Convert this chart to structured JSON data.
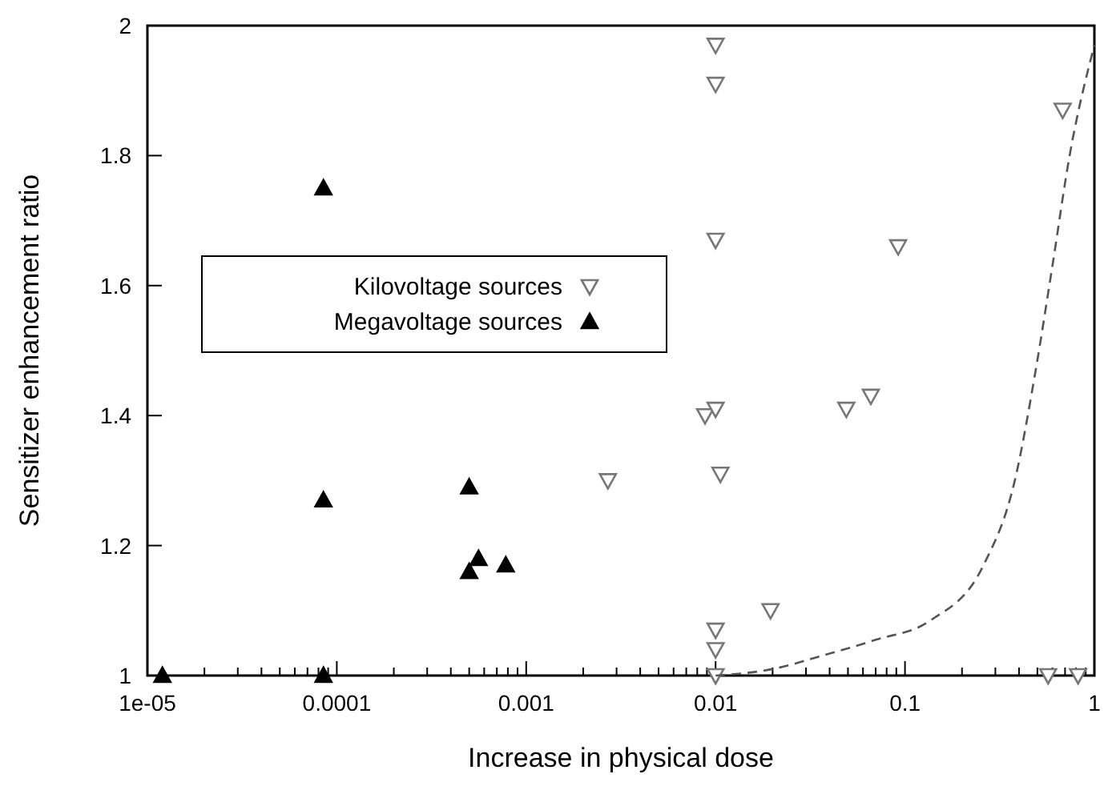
{
  "chart_data": {
    "type": "scatter",
    "xlabel": "Increase in physical dose",
    "ylabel": "Sensitizer enhancement ratio",
    "log": "x",
    "xlim": [
      1e-05,
      1
    ],
    "ylim": [
      1,
      2
    ],
    "xticks": [
      {
        "value": 1e-05,
        "label": "1e-05"
      },
      {
        "value": 2e-05,
        "label": null
      },
      {
        "value": 3e-05,
        "label": null
      },
      {
        "value": 4e-05,
        "label": null
      },
      {
        "value": 5e-05,
        "label": null
      },
      {
        "value": 6e-05,
        "label": null
      },
      {
        "value": 7e-05,
        "label": null
      },
      {
        "value": 8e-05,
        "label": null
      },
      {
        "value": 9e-05,
        "label": null
      },
      0.0001,
      {
        "value": 0.0002,
        "label": null
      },
      {
        "value": 0.0003,
        "label": null
      },
      {
        "value": 0.0004,
        "label": null
      },
      {
        "value": 0.0005,
        "label": null
      },
      {
        "value": 0.0006,
        "label": null
      },
      {
        "value": 0.0007,
        "label": null
      },
      {
        "value": 0.0008,
        "label": null
      },
      {
        "value": 0.0009,
        "label": null
      },
      0.001,
      {
        "value": 0.002,
        "label": null
      },
      {
        "value": 0.003,
        "label": null
      },
      {
        "value": 0.004,
        "label": null
      },
      {
        "value": 0.005,
        "label": null
      },
      {
        "value": 0.006,
        "label": null
      },
      {
        "value": 0.007,
        "label": null
      },
      {
        "value": 0.008,
        "label": null
      },
      {
        "value": 0.009,
        "label": null
      },
      0.01,
      {
        "value": 0.02,
        "label": null
      },
      {
        "value": 0.03,
        "label": null
      },
      {
        "value": 0.04,
        "label": null
      },
      {
        "value": 0.05,
        "label": null
      },
      {
        "value": 0.06,
        "label": null
      },
      {
        "value": 0.07,
        "label": null
      },
      {
        "value": 0.08,
        "label": null
      },
      {
        "value": 0.09,
        "label": null
      },
      0.1,
      {
        "value": 0.2,
        "label": null
      },
      {
        "value": 0.3,
        "label": null
      },
      {
        "value": 0.4,
        "label": null
      },
      {
        "value": 0.5,
        "label": null
      },
      {
        "value": 0.6,
        "label": null
      },
      {
        "value": 0.7,
        "label": null
      },
      {
        "value": 0.8,
        "label": null
      },
      {
        "value": 0.9,
        "label": null
      },
      1
    ],
    "yticks": [
      1,
      1.2,
      1.4,
      1.6,
      1.8,
      2
    ],
    "grid": false,
    "legend": "left",
    "series": [
      {
        "name": "Kilovoltage sources",
        "marker": "triangle-down",
        "color": "#777777",
        "x": [
          0.01,
          0.01,
          0.01,
          0.092,
          0.68,
          0.0088,
          0.01,
          0.049,
          0.066,
          0.0106,
          0.0027,
          0.0195,
          0.01,
          0.01,
          0.01,
          0.57,
          0.82
        ],
        "values": [
          1.97,
          1.91,
          1.67,
          1.66,
          1.87,
          1.4,
          1.41,
          1.41,
          1.43,
          1.31,
          1.3,
          1.1,
          1.07,
          1.04,
          1.0,
          1.0,
          1.0
        ]
      },
      {
        "name": "Megavoltage sources",
        "marker": "triangle",
        "color": "#000000",
        "x": [
          1.2e-05,
          8.5e-05,
          8.5e-05,
          8.5e-05,
          0.0005,
          0.0005,
          0.00056,
          0.00078
        ],
        "values": [
          1.0,
          1.75,
          1.27,
          1.0,
          1.29,
          1.16,
          1.18,
          1.17
        ]
      },
      {
        "type": "line",
        "marker": "none",
        "line_style": "dashed",
        "color": "#555555",
        "x": [
          0.01,
          0.02,
          0.036,
          0.07,
          0.135,
          0.26,
          0.38,
          0.49,
          0.6,
          0.74,
          1
        ],
        "values": [
          1.0,
          1.01,
          1.03,
          1.055,
          1.084,
          1.17,
          1.3,
          1.47,
          1.63,
          1.8,
          1.97
        ]
      }
    ]
  }
}
